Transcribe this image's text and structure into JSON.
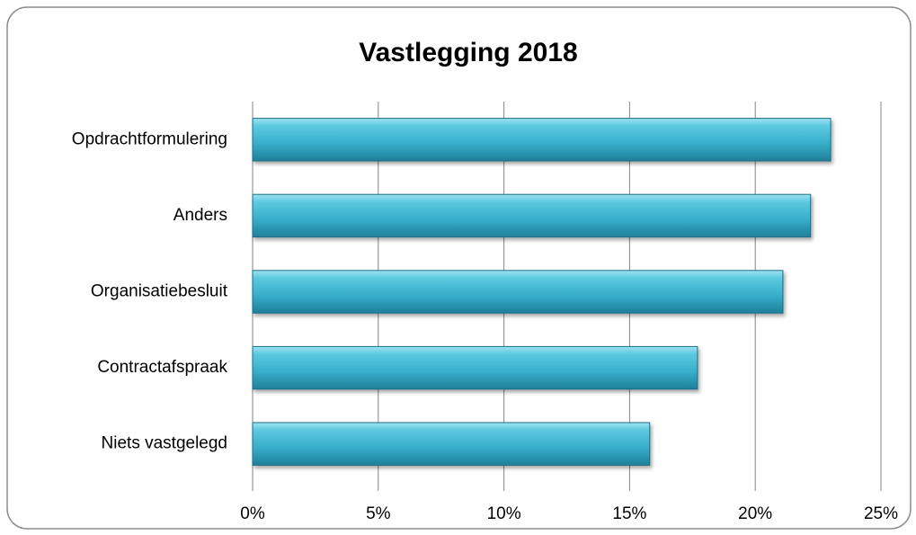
{
  "chart_data": {
    "type": "bar",
    "orientation": "horizontal",
    "title": "Vastlegging 2018",
    "categories": [
      "Opdrachtformulering",
      "Anders",
      "Organisatiebesluit",
      "Contractafspraak",
      "Niets vastgelegd"
    ],
    "values": [
      23.0,
      22.2,
      21.1,
      17.7,
      15.8
    ],
    "color": "#3fb4cf",
    "xlim": [
      0,
      25
    ],
    "xticks": [
      {
        "value": 0,
        "label": "0%"
      },
      {
        "value": 5,
        "label": "5%"
      },
      {
        "value": 10,
        "label": "10%"
      },
      {
        "value": 15,
        "label": "15%"
      },
      {
        "value": 20,
        "label": "20%"
      },
      {
        "value": 25,
        "label": "25%"
      }
    ],
    "grid": true
  }
}
